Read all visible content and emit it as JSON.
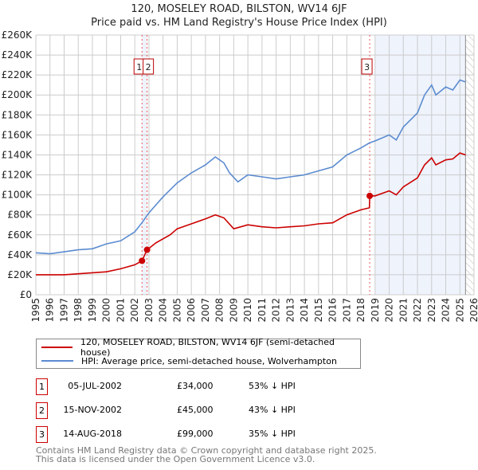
{
  "chart_data": {
    "type": "line",
    "title": "120, MOSELEY ROAD, BILSTON, WV14 6JF",
    "subtitle": "Price paid vs. HM Land Registry's House Price Index (HPI)",
    "xlim": [
      1995,
      2026
    ],
    "ylim": [
      0,
      260000
    ],
    "x_ticks": [
      "1995",
      "1996",
      "1997",
      "1998",
      "1999",
      "2000",
      "2001",
      "2002",
      "2003",
      "2004",
      "2005",
      "2006",
      "2007",
      "2008",
      "2009",
      "2010",
      "2011",
      "2012",
      "2013",
      "2014",
      "2015",
      "2016",
      "2017",
      "2018",
      "2019",
      "2020",
      "2021",
      "2022",
      "2023",
      "2024",
      "2025",
      "2026"
    ],
    "y_ticks": [
      {
        "v": 0,
        "label": "£0"
      },
      {
        "v": 20000,
        "label": "£20K"
      },
      {
        "v": 40000,
        "label": "£40K"
      },
      {
        "v": 60000,
        "label": "£60K"
      },
      {
        "v": 80000,
        "label": "£80K"
      },
      {
        "v": 100000,
        "label": "£100K"
      },
      {
        "v": 120000,
        "label": "£120K"
      },
      {
        "v": 140000,
        "label": "£140K"
      },
      {
        "v": 160000,
        "label": "£160K"
      },
      {
        "v": 180000,
        "label": "£180K"
      },
      {
        "v": 200000,
        "label": "£200K"
      },
      {
        "v": 220000,
        "label": "£220K"
      },
      {
        "v": 240000,
        "label": "£240K"
      },
      {
        "v": 260000,
        "label": "£260K"
      }
    ],
    "grid": true,
    "series": [
      {
        "name": "120, MOSELEY ROAD, BILSTON, WV14 6JF (semi-detached house)",
        "color": "#cc0000",
        "x": [
          1995,
          1996,
          1997,
          1998,
          1999,
          2000,
          2001,
          2002,
          2002.51,
          2002.87,
          2003.5,
          2004.5,
          2005,
          2006,
          2007,
          2007.7,
          2008.3,
          2009,
          2010,
          2011,
          2012,
          2013,
          2014,
          2015,
          2016,
          2017,
          2018,
          2018.6,
          2018.62,
          2019,
          2020,
          2020.5,
          2021,
          2022,
          2022.5,
          2023,
          2023.3,
          2024,
          2024.5,
          2025,
          2025.4
        ],
        "y": [
          20000,
          20000,
          20000,
          21000,
          22000,
          23000,
          26000,
          30000,
          34000,
          45000,
          52000,
          60000,
          66000,
          71000,
          76000,
          80000,
          77000,
          66000,
          70000,
          68000,
          67000,
          68000,
          69000,
          71000,
          72000,
          80000,
          85000,
          87000,
          99000,
          99000,
          104000,
          100000,
          108000,
          117000,
          130000,
          137000,
          130000,
          135000,
          136000,
          142000,
          140000
        ]
      },
      {
        "name": "HPI: Average price, semi-detached house, Wolverhampton",
        "color": "#5b8bd0",
        "x": [
          1995,
          1996,
          1997,
          1998,
          1999,
          2000,
          2001,
          2002,
          2002.5,
          2003,
          2004,
          2005,
          2006,
          2007,
          2007.7,
          2008.3,
          2008.7,
          2009.3,
          2010,
          2011,
          2012,
          2013,
          2014,
          2015,
          2016,
          2017,
          2018,
          2018.6,
          2019,
          2020,
          2020.5,
          2021,
          2022,
          2022.5,
          2023,
          2023.3,
          2024,
          2024.5,
          2025,
          2025.4
        ],
        "y": [
          42000,
          41000,
          43000,
          45000,
          46000,
          51000,
          54000,
          63000,
          72000,
          82000,
          98000,
          112000,
          122000,
          130000,
          138000,
          132000,
          122000,
          113000,
          120000,
          118000,
          116000,
          118000,
          120000,
          124000,
          128000,
          140000,
          147000,
          152000,
          154000,
          160000,
          155000,
          168000,
          182000,
          200000,
          210000,
          200000,
          208000,
          205000,
          215000,
          213000
        ]
      }
    ],
    "sales": [
      {
        "id": "1",
        "x": 2002.51,
        "y": 34000
      },
      {
        "id": "2",
        "x": 2002.87,
        "y": 45000
      },
      {
        "id": "3",
        "x": 2018.62,
        "y": 99000
      }
    ],
    "shaded_ranges": [
      [
        2002.51,
        2002.87
      ],
      [
        2019.0,
        2025.4
      ]
    ],
    "hatched_from": 2025.4
  },
  "header": {
    "title": "120, MOSELEY ROAD, BILSTON, WV14 6JF",
    "subtitle": "Price paid vs. HM Land Registry's House Price Index (HPI)"
  },
  "legend": {
    "property": "120, MOSELEY ROAD, BILSTON, WV14 6JF (semi-detached house)",
    "hpi": "HPI: Average price, semi-detached house, Wolverhampton"
  },
  "transactions": [
    {
      "id": "1",
      "date": "05-JUL-2002",
      "price": "£34,000",
      "hpi": "53% ↓ HPI"
    },
    {
      "id": "2",
      "date": "15-NOV-2002",
      "price": "£45,000",
      "hpi": "43% ↓ HPI"
    },
    {
      "id": "3",
      "date": "14-AUG-2018",
      "price": "£99,000",
      "hpi": "35% ↓ HPI"
    }
  ],
  "footer": {
    "line1": "Contains HM Land Registry data © Crown copyright and database right 2025.",
    "line2": "This data is licensed under the Open Government Licence v3.0."
  }
}
